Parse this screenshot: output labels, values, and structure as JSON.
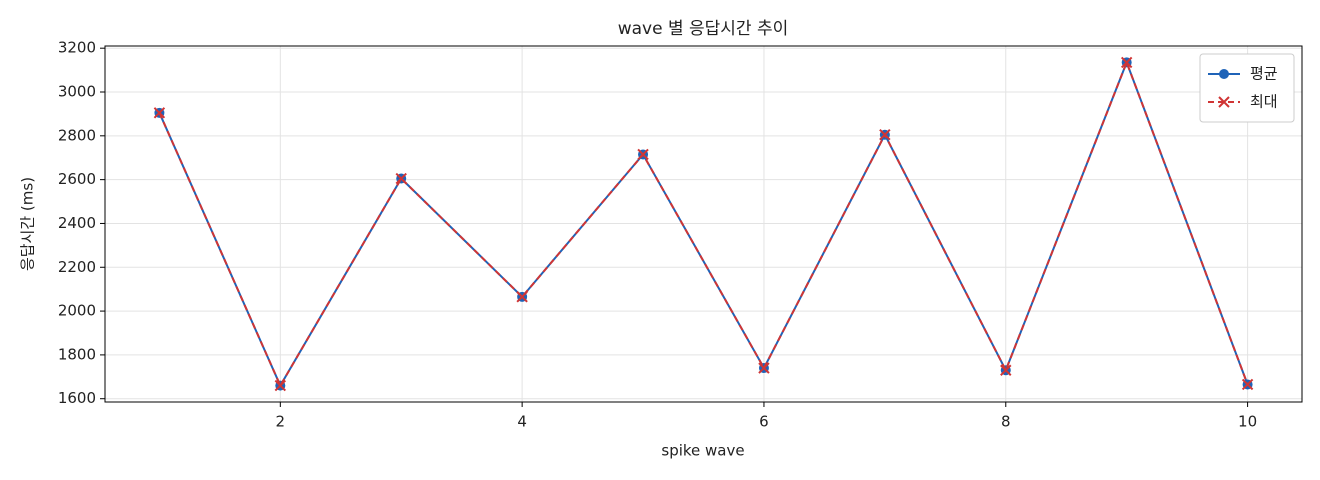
{
  "chart_data": {
    "type": "line",
    "title": "wave 별 응답시간 추이",
    "x_label": "spike wave",
    "y_label": "응답시간 (ms)",
    "x": [
      1,
      2,
      3,
      4,
      5,
      6,
      7,
      8,
      9,
      10
    ],
    "series": [
      {
        "name": "평균",
        "color": "#1f63b8",
        "marker": "circle",
        "dash": false,
        "values": [
          2905,
          1660,
          2605,
          2065,
          2715,
          1740,
          2805,
          1730,
          3135,
          1665
        ]
      },
      {
        "name": "최대",
        "color": "#d03535",
        "marker": "x",
        "dash": true,
        "values": [
          2905,
          1660,
          2605,
          2065,
          2715,
          1740,
          2805,
          1730,
          3135,
          1665
        ]
      }
    ],
    "xlim": [
      0.55,
      10.45
    ],
    "ylim": [
      1585,
      3210
    ],
    "xticks": [
      2,
      4,
      6,
      8,
      10
    ],
    "yticks": [
      1600,
      1800,
      2000,
      2200,
      2400,
      2600,
      2800,
      3000,
      3200
    ],
    "grid": true,
    "legend": "upper right"
  }
}
